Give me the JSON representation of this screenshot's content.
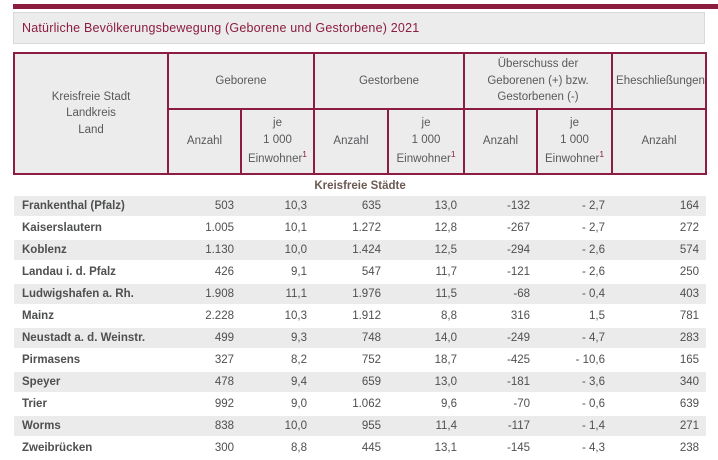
{
  "title": "Natürliche Bevölkerungsbewegung (Geborene und Gestorbene) 2021",
  "colors": {
    "accent": "#8c1d40",
    "header_bg": "#ececec",
    "row_shade": "#ebebeb",
    "text": "#4e4f50"
  },
  "table": {
    "header": {
      "row_label_lines": [
        "Kreisfreie Stadt",
        "Landkreis",
        "Land"
      ],
      "groups": [
        {
          "label": "Geborene"
        },
        {
          "label": "Gestorbene"
        },
        {
          "label": "Überschuss der Geborenen (+) bzw. Gestorbenen (-)"
        },
        {
          "label": "Eheschließungen"
        }
      ],
      "anzahl_label": "Anzahl",
      "per_thousand_lines": [
        "je",
        "1 000",
        "Einwohner"
      ],
      "footnote_marker": "1"
    },
    "section_label": "Kreisfreie Städte",
    "rows": [
      {
        "name": "Frankenthal (Pfalz)",
        "values": [
          "503",
          "10,3",
          "635",
          "13,0",
          "-132",
          "- 2,7",
          "164"
        ]
      },
      {
        "name": "Kaiserslautern",
        "values": [
          "1.005",
          "10,1",
          "1.272",
          "12,8",
          "-267",
          "- 2,7",
          "272"
        ]
      },
      {
        "name": "Koblenz",
        "values": [
          "1.130",
          "10,0",
          "1.424",
          "12,5",
          "-294",
          "- 2,6",
          "574"
        ]
      },
      {
        "name": "Landau i. d. Pfalz",
        "values": [
          "426",
          "9,1",
          "547",
          "11,7",
          "-121",
          "- 2,6",
          "250"
        ]
      },
      {
        "name": "Ludwigshafen a. Rh.",
        "values": [
          "1.908",
          "11,1",
          "1.976",
          "11,5",
          "-68",
          "- 0,4",
          "403"
        ]
      },
      {
        "name": "Mainz",
        "values": [
          "2.228",
          "10,3",
          "1.912",
          "8,8",
          "316",
          "1,5",
          "781"
        ]
      },
      {
        "name": "Neustadt a. d. Weinstr.",
        "values": [
          "499",
          "9,3",
          "748",
          "14,0",
          "-249",
          "- 4,7",
          "283"
        ]
      },
      {
        "name": "Pirmasens",
        "values": [
          "327",
          "8,2",
          "752",
          "18,7",
          "-425",
          "- 10,6",
          "165"
        ]
      },
      {
        "name": "Speyer",
        "values": [
          "478",
          "9,4",
          "659",
          "13,0",
          "-181",
          "- 3,6",
          "340"
        ]
      },
      {
        "name": "Trier",
        "values": [
          "992",
          "9,0",
          "1.062",
          "9,6",
          "-70",
          "- 0,6",
          "639"
        ]
      },
      {
        "name": "Worms",
        "values": [
          "838",
          "10,0",
          "955",
          "11,4",
          "-117",
          "- 1,4",
          "271"
        ]
      },
      {
        "name": "Zweibrücken",
        "values": [
          "300",
          "8,8",
          "445",
          "13,1",
          "-145",
          "- 4,3",
          "238"
        ]
      }
    ]
  }
}
